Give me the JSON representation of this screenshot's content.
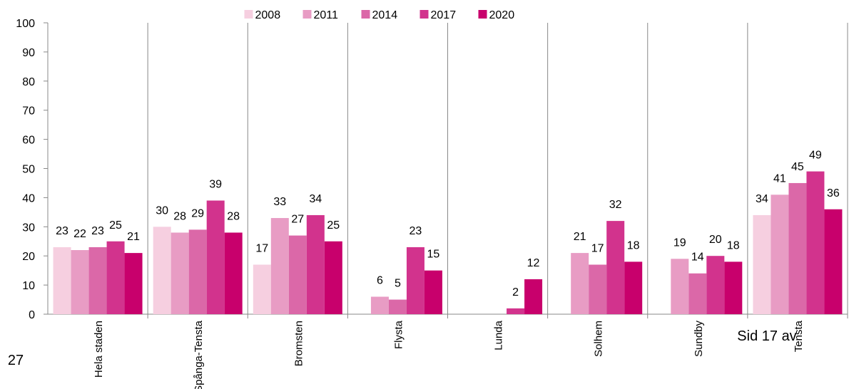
{
  "chart_data": {
    "type": "bar",
    "categories": [
      "Hela staden",
      "Spånga-Tensta",
      "Bromsten",
      "Flysta",
      "Lunda",
      "Solhem",
      "Sundby",
      "Tensta"
    ],
    "series": [
      {
        "name": "2008",
        "color": "#f6cfe0",
        "values": [
          23,
          30,
          17,
          null,
          null,
          null,
          null,
          34
        ]
      },
      {
        "name": "2011",
        "color": "#e89cc4",
        "values": [
          22,
          28,
          33,
          6,
          null,
          21,
          19,
          41
        ]
      },
      {
        "name": "2014",
        "color": "#db68a8",
        "values": [
          23,
          29,
          27,
          5,
          null,
          17,
          14,
          45
        ]
      },
      {
        "name": "2017",
        "color": "#d2338d",
        "values": [
          25,
          39,
          34,
          23,
          2,
          32,
          20,
          49
        ]
      },
      {
        "name": "2020",
        "color": "#c8006c",
        "values": [
          21,
          28,
          25,
          15,
          12,
          18,
          18,
          36
        ]
      }
    ],
    "ylim": [
      0,
      100
    ],
    "yticks": [
      0,
      10,
      20,
      30,
      40,
      50,
      60,
      70,
      80,
      90,
      100
    ],
    "grid": "x",
    "legend": "top",
    "annotations": [
      "Sid 17 av",
      "27"
    ]
  }
}
